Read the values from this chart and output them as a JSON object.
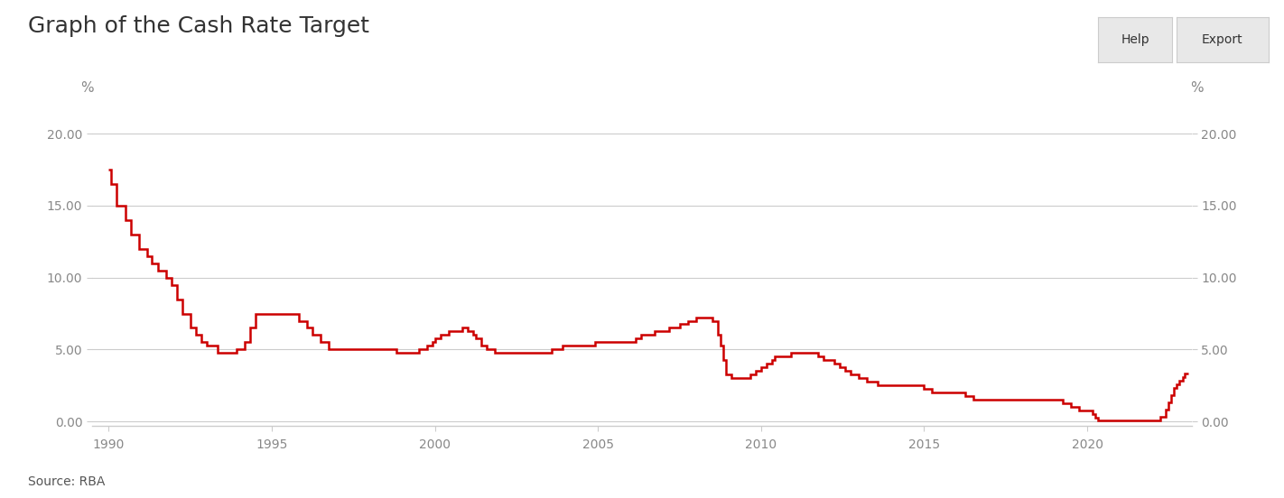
{
  "title": "Graph of the Cash Rate Target",
  "ylabel_left": "%",
  "ylabel_right": "%",
  "source": "Source: RBA",
  "line_color": "#cc0000",
  "line_width": 1.8,
  "background_color": "#ffffff",
  "grid_color": "#cccccc",
  "axis_color": "#cccccc",
  "tick_color": "#888888",
  "title_color": "#333333",
  "ylim": [
    -0.3,
    21.5
  ],
  "yticks": [
    0.0,
    5.0,
    10.0,
    15.0,
    20.0
  ],
  "xlim_start": 1989.5,
  "xlim_end": 2023.2,
  "xticks": [
    1990,
    1995,
    2000,
    2005,
    2010,
    2015,
    2020
  ],
  "help_text": "Help",
  "export_text": "Export",
  "data": [
    [
      1990.0,
      17.5
    ],
    [
      1990.08,
      17.5
    ],
    [
      1990.08,
      16.5
    ],
    [
      1990.25,
      16.5
    ],
    [
      1990.25,
      15.0
    ],
    [
      1990.5,
      15.0
    ],
    [
      1990.5,
      14.0
    ],
    [
      1990.67,
      14.0
    ],
    [
      1990.67,
      13.0
    ],
    [
      1990.92,
      13.0
    ],
    [
      1990.92,
      12.0
    ],
    [
      1991.17,
      12.0
    ],
    [
      1991.17,
      11.5
    ],
    [
      1991.33,
      11.5
    ],
    [
      1991.33,
      11.0
    ],
    [
      1991.5,
      11.0
    ],
    [
      1991.5,
      10.5
    ],
    [
      1991.75,
      10.5
    ],
    [
      1991.75,
      10.0
    ],
    [
      1991.92,
      10.0
    ],
    [
      1991.92,
      9.5
    ],
    [
      1992.08,
      9.5
    ],
    [
      1992.08,
      8.5
    ],
    [
      1992.25,
      8.5
    ],
    [
      1992.25,
      7.5
    ],
    [
      1992.5,
      7.5
    ],
    [
      1992.5,
      6.5
    ],
    [
      1992.67,
      6.5
    ],
    [
      1992.67,
      6.0
    ],
    [
      1992.83,
      6.0
    ],
    [
      1992.83,
      5.5
    ],
    [
      1993.0,
      5.5
    ],
    [
      1993.0,
      5.25
    ],
    [
      1993.33,
      5.25
    ],
    [
      1993.33,
      4.75
    ],
    [
      1993.92,
      4.75
    ],
    [
      1993.92,
      5.0
    ],
    [
      1994.17,
      5.0
    ],
    [
      1994.17,
      5.5
    ],
    [
      1994.33,
      5.5
    ],
    [
      1994.33,
      6.5
    ],
    [
      1994.5,
      6.5
    ],
    [
      1994.5,
      7.5
    ],
    [
      1994.92,
      7.5
    ],
    [
      1995.83,
      7.5
    ],
    [
      1995.83,
      7.0
    ],
    [
      1996.08,
      7.0
    ],
    [
      1996.08,
      6.5
    ],
    [
      1996.25,
      6.5
    ],
    [
      1996.25,
      6.0
    ],
    [
      1996.5,
      6.0
    ],
    [
      1996.5,
      5.5
    ],
    [
      1996.75,
      5.5
    ],
    [
      1996.75,
      5.0
    ],
    [
      1998.83,
      5.0
    ],
    [
      1998.83,
      4.75
    ],
    [
      1999.5,
      4.75
    ],
    [
      1999.5,
      5.0
    ],
    [
      1999.75,
      5.0
    ],
    [
      1999.75,
      5.25
    ],
    [
      1999.92,
      5.25
    ],
    [
      1999.92,
      5.5
    ],
    [
      2000.0,
      5.5
    ],
    [
      2000.0,
      5.75
    ],
    [
      2000.17,
      5.75
    ],
    [
      2000.17,
      6.0
    ],
    [
      2000.42,
      6.0
    ],
    [
      2000.42,
      6.25
    ],
    [
      2000.67,
      6.25
    ],
    [
      2000.83,
      6.25
    ],
    [
      2000.83,
      6.5
    ],
    [
      2001.0,
      6.5
    ],
    [
      2001.0,
      6.25
    ],
    [
      2001.17,
      6.25
    ],
    [
      2001.17,
      6.0
    ],
    [
      2001.25,
      6.0
    ],
    [
      2001.25,
      5.75
    ],
    [
      2001.42,
      5.75
    ],
    [
      2001.42,
      5.25
    ],
    [
      2001.58,
      5.25
    ],
    [
      2001.58,
      5.0
    ],
    [
      2001.83,
      5.0
    ],
    [
      2001.83,
      4.75
    ],
    [
      2003.58,
      4.75
    ],
    [
      2003.58,
      5.0
    ],
    [
      2003.92,
      5.0
    ],
    [
      2003.92,
      5.25
    ],
    [
      2004.92,
      5.25
    ],
    [
      2004.92,
      5.5
    ],
    [
      2005.33,
      5.5
    ],
    [
      2006.17,
      5.5
    ],
    [
      2006.17,
      5.75
    ],
    [
      2006.33,
      5.75
    ],
    [
      2006.33,
      6.0
    ],
    [
      2006.58,
      6.0
    ],
    [
      2006.75,
      6.0
    ],
    [
      2006.75,
      6.25
    ],
    [
      2007.17,
      6.25
    ],
    [
      2007.17,
      6.5
    ],
    [
      2007.5,
      6.5
    ],
    [
      2007.5,
      6.75
    ],
    [
      2007.75,
      6.75
    ],
    [
      2007.75,
      7.0
    ],
    [
      2008.0,
      7.0
    ],
    [
      2008.0,
      7.25
    ],
    [
      2008.33,
      7.25
    ],
    [
      2008.5,
      7.25
    ],
    [
      2008.5,
      7.0
    ],
    [
      2008.67,
      7.0
    ],
    [
      2008.67,
      6.0
    ],
    [
      2008.75,
      6.0
    ],
    [
      2008.75,
      5.25
    ],
    [
      2008.83,
      5.25
    ],
    [
      2008.83,
      4.25
    ],
    [
      2008.92,
      4.25
    ],
    [
      2008.92,
      3.25
    ],
    [
      2009.08,
      3.25
    ],
    [
      2009.08,
      3.0
    ],
    [
      2009.33,
      3.0
    ],
    [
      2009.67,
      3.0
    ],
    [
      2009.67,
      3.25
    ],
    [
      2009.83,
      3.25
    ],
    [
      2009.83,
      3.5
    ],
    [
      2010.0,
      3.5
    ],
    [
      2010.0,
      3.75
    ],
    [
      2010.17,
      3.75
    ],
    [
      2010.17,
      4.0
    ],
    [
      2010.33,
      4.0
    ],
    [
      2010.33,
      4.25
    ],
    [
      2010.42,
      4.25
    ],
    [
      2010.42,
      4.5
    ],
    [
      2010.92,
      4.5
    ],
    [
      2010.92,
      4.75
    ],
    [
      2011.75,
      4.75
    ],
    [
      2011.75,
      4.5
    ],
    [
      2011.92,
      4.5
    ],
    [
      2011.92,
      4.25
    ],
    [
      2012.25,
      4.25
    ],
    [
      2012.25,
      4.0
    ],
    [
      2012.42,
      4.0
    ],
    [
      2012.42,
      3.75
    ],
    [
      2012.58,
      3.75
    ],
    [
      2012.58,
      3.5
    ],
    [
      2012.75,
      3.5
    ],
    [
      2012.75,
      3.25
    ],
    [
      2013.0,
      3.25
    ],
    [
      2013.0,
      3.0
    ],
    [
      2013.25,
      3.0
    ],
    [
      2013.25,
      2.75
    ],
    [
      2013.58,
      2.75
    ],
    [
      2013.58,
      2.5
    ],
    [
      2015.0,
      2.5
    ],
    [
      2015.0,
      2.25
    ],
    [
      2015.25,
      2.25
    ],
    [
      2015.25,
      2.0
    ],
    [
      2016.25,
      2.0
    ],
    [
      2016.25,
      1.75
    ],
    [
      2016.5,
      1.75
    ],
    [
      2016.5,
      1.5
    ],
    [
      2019.25,
      1.5
    ],
    [
      2019.25,
      1.25
    ],
    [
      2019.5,
      1.25
    ],
    [
      2019.5,
      1.0
    ],
    [
      2019.75,
      1.0
    ],
    [
      2019.75,
      0.75
    ],
    [
      2020.17,
      0.75
    ],
    [
      2020.17,
      0.5
    ],
    [
      2020.25,
      0.5
    ],
    [
      2020.25,
      0.25
    ],
    [
      2020.33,
      0.25
    ],
    [
      2020.33,
      0.1
    ],
    [
      2022.25,
      0.1
    ],
    [
      2022.25,
      0.35
    ],
    [
      2022.42,
      0.35
    ],
    [
      2022.42,
      0.85
    ],
    [
      2022.5,
      0.85
    ],
    [
      2022.5,
      1.35
    ],
    [
      2022.58,
      1.35
    ],
    [
      2022.58,
      1.85
    ],
    [
      2022.67,
      1.85
    ],
    [
      2022.67,
      2.35
    ],
    [
      2022.75,
      2.35
    ],
    [
      2022.75,
      2.6
    ],
    [
      2022.83,
      2.6
    ],
    [
      2022.83,
      2.85
    ],
    [
      2022.92,
      2.85
    ],
    [
      2022.92,
      3.1
    ],
    [
      2023.0,
      3.1
    ],
    [
      2023.0,
      3.35
    ],
    [
      2023.08,
      3.35
    ],
    [
      2023.1,
      3.35
    ]
  ]
}
